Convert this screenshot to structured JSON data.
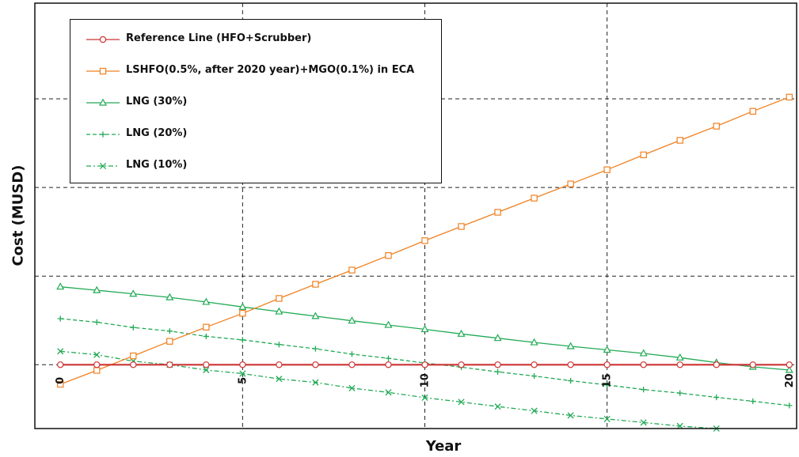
{
  "chart_data": {
    "type": "line",
    "xlabel": "Year",
    "ylabel": "Cost (MUSD)",
    "xlim": [
      -0.7,
      20.2
    ],
    "ylim": [
      -1.8,
      10.2
    ],
    "x_ticks": [
      0,
      5,
      10,
      15,
      20
    ],
    "grid": true,
    "legend_position": "top-left",
    "x": [
      0,
      1,
      2,
      3,
      4,
      5,
      6,
      7,
      8,
      9,
      10,
      11,
      12,
      13,
      14,
      15,
      16,
      17,
      18,
      19,
      20
    ],
    "series": [
      {
        "name": "Reference Line (HFO+Scrubber)",
        "color": "#cc3333",
        "marker": "circle",
        "dash": "solid",
        "values": [
          0,
          0,
          0,
          0,
          0,
          0,
          0,
          0,
          0,
          0,
          0,
          0,
          0,
          0,
          0,
          0,
          0,
          0,
          0,
          0,
          0
        ]
      },
      {
        "name": "LSHFO(0.5%, after 2020 year)+MGO(0.1%) in ECA",
        "color": "#f08020",
        "marker": "square",
        "dash": "solid",
        "values": [
          -0.55,
          -0.16,
          0.25,
          0.66,
          1.06,
          1.45,
          1.87,
          2.27,
          2.67,
          3.08,
          3.5,
          3.9,
          4.3,
          4.7,
          5.1,
          5.5,
          5.92,
          6.33,
          6.73,
          7.15,
          7.55
        ]
      },
      {
        "name": "LNG (30%)",
        "color": "#22aa55",
        "marker": "triangle",
        "dash": "solid",
        "values": [
          2.2,
          2.1,
          2.0,
          1.9,
          1.77,
          1.63,
          1.5,
          1.37,
          1.24,
          1.12,
          1.0,
          0.87,
          0.75,
          0.63,
          0.52,
          0.42,
          0.32,
          0.2,
          0.06,
          -0.06,
          -0.15
        ]
      },
      {
        "name": "LNG (20%)",
        "color": "#22aa55",
        "marker": "plus",
        "dash": "dashed",
        "values": [
          1.3,
          1.2,
          1.05,
          0.95,
          0.8,
          0.7,
          0.57,
          0.45,
          0.3,
          0.18,
          0.05,
          -0.07,
          -0.2,
          -0.32,
          -0.45,
          -0.57,
          -0.7,
          -0.8,
          -0.92,
          -1.03,
          -1.15
        ]
      },
      {
        "name": "LNG (10%)",
        "color": "#22aa55",
        "marker": "x",
        "dash": "dashdot",
        "values": [
          0.38,
          0.28,
          0.1,
          0.0,
          -0.15,
          -0.25,
          -0.4,
          -0.5,
          -0.66,
          -0.78,
          -0.93,
          -1.05,
          -1.18,
          -1.3,
          -1.43,
          -1.53,
          -1.63,
          -1.73,
          -1.8,
          null,
          null
        ]
      }
    ]
  }
}
